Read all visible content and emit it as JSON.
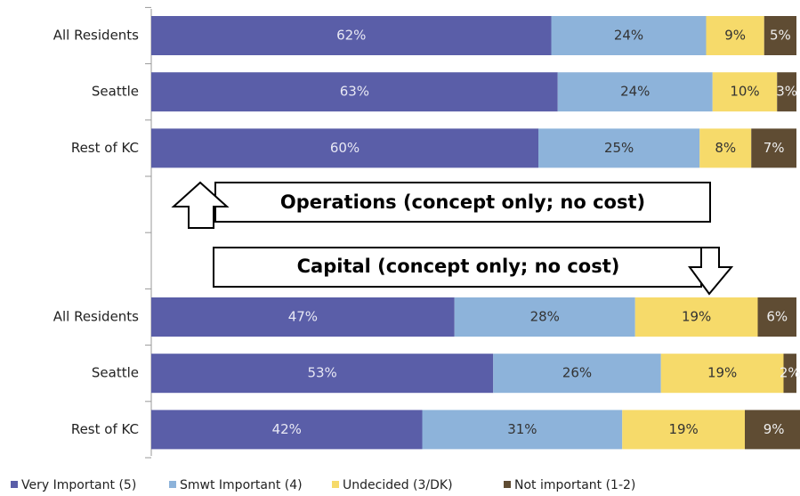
{
  "chart_data": {
    "type": "stacked_bar_horizontal",
    "categories": [
      "All Residents",
      "Seattle",
      "Rest of KC",
      null,
      null,
      "All Residents",
      "Seattle",
      "Rest of KC"
    ],
    "xlim": [
      0,
      100
    ],
    "series": [
      {
        "name": "Very Important (5)",
        "color": "#5a5ea8",
        "values": [
          62,
          63,
          60,
          null,
          null,
          47,
          53,
          42
        ],
        "value_labels": [
          "62%",
          "63%",
          "60%",
          null,
          null,
          "47%",
          "53%",
          "42%"
        ]
      },
      {
        "name": "Smwt Important (4)",
        "color": "#8db3da",
        "values": [
          24,
          24,
          25,
          null,
          null,
          28,
          26,
          31
        ],
        "value_labels": [
          "24%",
          "24%",
          "25%",
          null,
          null,
          "28%",
          "26%",
          "31%"
        ]
      },
      {
        "name": "Undecided (3/DK)",
        "color": "#f6da6a",
        "values": [
          9,
          10,
          8,
          null,
          null,
          19,
          19,
          19
        ],
        "value_labels": [
          "9%",
          "10%",
          "8%",
          null,
          null,
          "19%",
          "19%",
          "19%"
        ]
      },
      {
        "name": "Not important (1-2)",
        "color": "#5f4c33",
        "values": [
          5,
          3,
          7,
          null,
          null,
          6,
          2,
          9
        ],
        "value_labels": [
          "5%",
          "3%",
          "7%",
          null,
          null,
          "6%",
          "2%",
          "9%"
        ]
      }
    ],
    "annotations": [
      "Operations (concept only; no cost)",
      "Capital (concept only; no cost)"
    ]
  }
}
